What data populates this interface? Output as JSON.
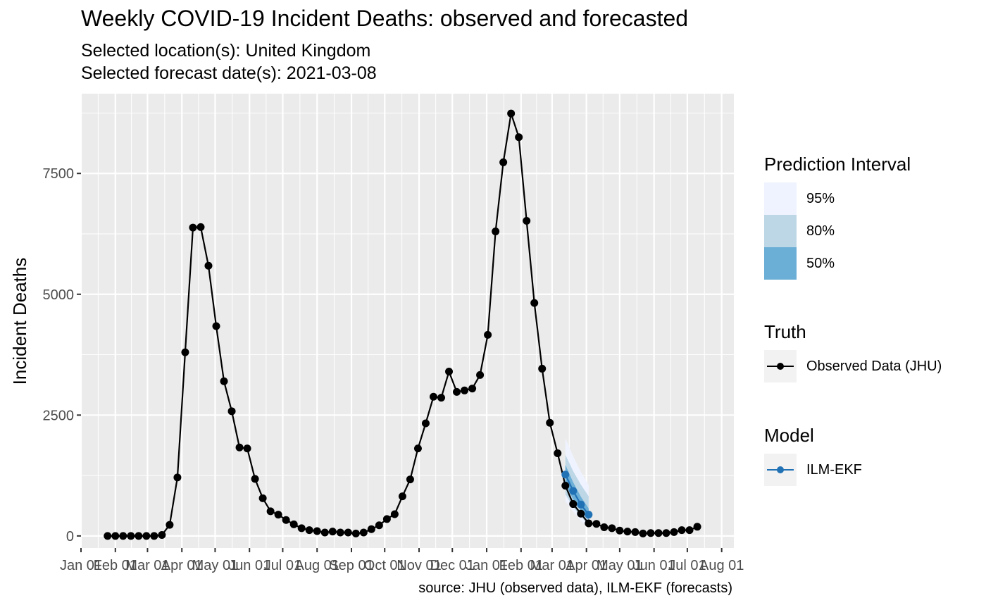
{
  "title": "Weekly COVID-19 Incident Deaths: observed and forecasted",
  "subtitle_line1": "Selected location(s): United Kingdom",
  "subtitle_line2": "Selected forecast date(s): 2021-03-08",
  "caption": "source: JHU (observed data), ILM-EKF (forecasts)",
  "colors": {
    "panel_bg": "#EBEBEB",
    "observed": "#000000",
    "model": "#2171B5",
    "pi95": "#EFF3FF",
    "pi80": "#BDD7E7",
    "pi50": "#6BAED6"
  },
  "legend": {
    "prediction_interval": {
      "title": "Prediction Interval",
      "items": [
        "95%",
        "80%",
        "50%"
      ]
    },
    "truth": {
      "title": "Truth",
      "items": [
        "Observed Data (JHU)"
      ]
    },
    "model": {
      "title": "Model",
      "items": [
        "ILM-EKF"
      ]
    }
  },
  "chart_data": {
    "type": "line",
    "title": "Weekly COVID-19 Incident Deaths: observed and forecasted",
    "xlabel": "",
    "ylabel": "Incident Deaths",
    "ylim": [
      -250,
      9150
    ],
    "xlim": [
      "2020-01-01",
      "2021-08-12"
    ],
    "y_ticks": [
      0,
      2500,
      5000,
      7500
    ],
    "y_tick_labels": [
      "0",
      "2500",
      "5000",
      "7500"
    ],
    "x_ticks": [
      "2020-01-01",
      "2020-02-01",
      "2020-03-01",
      "2020-04-01",
      "2020-05-01",
      "2020-06-01",
      "2020-07-01",
      "2020-08-01",
      "2020-09-01",
      "2020-10-01",
      "2020-11-01",
      "2020-12-01",
      "2021-01-01",
      "2021-02-01",
      "2021-03-01",
      "2021-04-01",
      "2021-05-01",
      "2021-06-01",
      "2021-07-01",
      "2021-08-01"
    ],
    "x_tick_labels": [
      "Jan 01",
      "Feb 01",
      "Mar 01",
      "Apr 01",
      "May 01",
      "Jun 01",
      "Jul 01",
      "Aug 01",
      "Sep 01",
      "Oct 01",
      "Nov 01",
      "Dec 01",
      "Jan 01",
      "Feb 01",
      "Mar 01",
      "Apr 01",
      "May 01",
      "Jun 01",
      "Jul 01",
      "Aug 01"
    ],
    "grid": true,
    "legend_position": "right",
    "series": [
      {
        "name": "Observed Data (JHU)",
        "x": [
          "2020-01-25",
          "2020-02-01",
          "2020-02-08",
          "2020-02-15",
          "2020-02-22",
          "2020-02-29",
          "2020-03-07",
          "2020-03-14",
          "2020-03-21",
          "2020-03-28",
          "2020-04-04",
          "2020-04-11",
          "2020-04-18",
          "2020-04-25",
          "2020-05-02",
          "2020-05-09",
          "2020-05-16",
          "2020-05-23",
          "2020-05-30",
          "2020-06-06",
          "2020-06-13",
          "2020-06-20",
          "2020-06-27",
          "2020-07-04",
          "2020-07-11",
          "2020-07-18",
          "2020-07-25",
          "2020-08-01",
          "2020-08-08",
          "2020-08-15",
          "2020-08-22",
          "2020-08-29",
          "2020-09-05",
          "2020-09-12",
          "2020-09-19",
          "2020-09-26",
          "2020-10-03",
          "2020-10-10",
          "2020-10-17",
          "2020-10-24",
          "2020-10-31",
          "2020-11-07",
          "2020-11-14",
          "2020-11-21",
          "2020-11-28",
          "2020-12-05",
          "2020-12-12",
          "2020-12-19",
          "2020-12-26",
          "2021-01-02",
          "2021-01-09",
          "2021-01-16",
          "2021-01-23",
          "2021-01-30",
          "2021-02-06",
          "2021-02-13",
          "2021-02-20",
          "2021-02-27",
          "2021-03-06",
          "2021-03-13",
          "2021-03-20",
          "2021-03-27",
          "2021-04-03",
          "2021-04-10",
          "2021-04-17",
          "2021-04-24",
          "2021-05-01",
          "2021-05-08",
          "2021-05-15",
          "2021-05-22",
          "2021-05-29",
          "2021-06-05",
          "2021-06-12",
          "2021-06-19",
          "2021-06-26",
          "2021-07-03",
          "2021-07-10"
        ],
        "values": [
          0,
          0,
          0,
          0,
          0,
          0,
          0,
          20,
          230,
          1210,
          3800,
          6380,
          6390,
          5590,
          4340,
          3200,
          2580,
          1830,
          1810,
          1180,
          780,
          510,
          440,
          330,
          240,
          160,
          120,
          100,
          70,
          90,
          70,
          70,
          50,
          70,
          140,
          220,
          350,
          450,
          820,
          1170,
          1810,
          2330,
          2880,
          2860,
          3400,
          2980,
          3010,
          3050,
          3330,
          4160,
          6300,
          7730,
          8740,
          8250,
          6520,
          4820,
          3460,
          2340,
          1710,
          1040,
          660,
          460,
          260,
          250,
          180,
          160,
          110,
          90,
          80,
          50,
          60,
          60,
          60,
          80,
          120,
          120,
          190
        ]
      },
      {
        "name": "ILM-EKF",
        "x": [
          "2021-03-13",
          "2021-03-20",
          "2021-03-27",
          "2021-04-03"
        ],
        "values": [
          1270,
          930,
          650,
          440
        ],
        "intervals": {
          "95%": {
            "lower": [
              720,
              500,
              310,
              170
            ],
            "upper": [
              2020,
              1650,
              1320,
              1050
            ]
          },
          "80%": {
            "lower": [
              860,
              600,
              400,
              240
            ],
            "upper": [
              1680,
              1340,
              1060,
              820
            ]
          },
          "50%": {
            "lower": [
              1070,
              760,
              520,
              330
            ],
            "upper": [
              1470,
              1110,
              810,
              570
            ]
          }
        }
      }
    ]
  }
}
